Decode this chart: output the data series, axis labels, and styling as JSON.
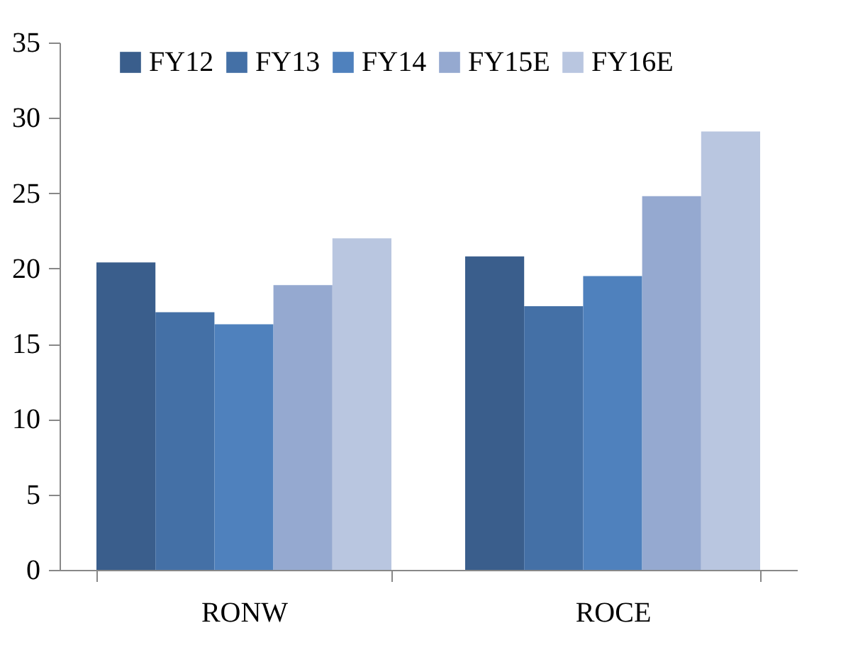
{
  "chart_data": {
    "type": "bar",
    "categories": [
      "RONW",
      "ROCE"
    ],
    "series": [
      {
        "name": "FY12",
        "color": "#3a5e8c",
        "values": [
          20.4,
          20.8
        ]
      },
      {
        "name": "FY13",
        "color": "#4470a6",
        "values": [
          17.1,
          17.5
        ]
      },
      {
        "name": "FY14",
        "color": "#4f81bd",
        "values": [
          16.3,
          19.5
        ]
      },
      {
        "name": "FY15E",
        "color": "#95a9d0",
        "values": [
          18.9,
          24.8
        ]
      },
      {
        "name": "FY16E",
        "color": "#b9c6e0",
        "values": [
          22.0,
          29.1
        ]
      }
    ],
    "ylim": [
      0,
      35
    ],
    "yticks": [
      0,
      5,
      10,
      15,
      20,
      25,
      30,
      35
    ],
    "grid": false,
    "legend": "top"
  }
}
